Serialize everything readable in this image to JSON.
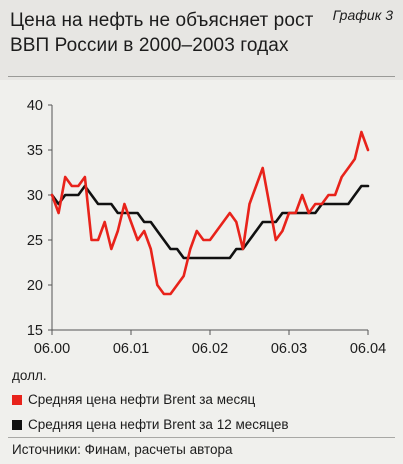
{
  "header": {
    "title_line1": "Цена на нефть не объясняет рост",
    "title_line2": "ВВП России в 2000–2003 годах",
    "badge": "График 3"
  },
  "colors": {
    "series_month": "#e8231b",
    "series_12m": "#111111",
    "background": "#e7e6e3"
  },
  "chart_data": {
    "type": "line",
    "title": "Цена на нефть не объясняет рост ВВП России в 2000–2003 годах",
    "xlabel": "",
    "ylabel": "долл.",
    "ylim": [
      15,
      40
    ],
    "yticks": [
      15,
      20,
      25,
      30,
      35,
      40
    ],
    "xlim": [
      "2000-06",
      "2004-06"
    ],
    "xticks": [
      "06.00",
      "06.01",
      "06.02",
      "06.03",
      "06.04"
    ],
    "grid": false,
    "legend_placement": "bottom",
    "series": [
      {
        "name": "Средняя цена нефти Brent за месяц",
        "color": "#e8231b",
        "points": [
          [
            "2000-06",
            30
          ],
          [
            "2000-07",
            28
          ],
          [
            "2000-08",
            32
          ],
          [
            "2000-09",
            31
          ],
          [
            "2000-10",
            31
          ],
          [
            "2000-11",
            32
          ],
          [
            "2000-12",
            25
          ],
          [
            "2001-01",
            25
          ],
          [
            "2001-02",
            27
          ],
          [
            "2001-03",
            24
          ],
          [
            "2001-04",
            26
          ],
          [
            "2001-05",
            29
          ],
          [
            "2001-06",
            27
          ],
          [
            "2001-07",
            25
          ],
          [
            "2001-08",
            26
          ],
          [
            "2001-09",
            24
          ],
          [
            "2001-10",
            20
          ],
          [
            "2001-11",
            19
          ],
          [
            "2001-12",
            19
          ],
          [
            "2002-01",
            20
          ],
          [
            "2002-02",
            21
          ],
          [
            "2002-03",
            24
          ],
          [
            "2002-04",
            26
          ],
          [
            "2002-05",
            25
          ],
          [
            "2002-06",
            25
          ],
          [
            "2002-07",
            26
          ],
          [
            "2002-08",
            27
          ],
          [
            "2002-09",
            28
          ],
          [
            "2002-10",
            27
          ],
          [
            "2002-11",
            24
          ],
          [
            "2002-12",
            29
          ],
          [
            "2003-01",
            31
          ],
          [
            "2003-02",
            33
          ],
          [
            "2003-03",
            29
          ],
          [
            "2003-04",
            25
          ],
          [
            "2003-05",
            26
          ],
          [
            "2003-06",
            28
          ],
          [
            "2003-07",
            28
          ],
          [
            "2003-08",
            30
          ],
          [
            "2003-09",
            28
          ],
          [
            "2003-10",
            29
          ],
          [
            "2003-11",
            29
          ],
          [
            "2003-12",
            30
          ],
          [
            "2004-01",
            30
          ],
          [
            "2004-02",
            32
          ],
          [
            "2004-03",
            33
          ],
          [
            "2004-04",
            34
          ],
          [
            "2004-05",
            37
          ],
          [
            "2004-06",
            35
          ]
        ]
      },
      {
        "name": "Средняя цена нефти Brent за 12 месяцев",
        "color": "#111111",
        "points": [
          [
            "2000-06",
            30
          ],
          [
            "2000-07",
            29
          ],
          [
            "2000-08",
            30
          ],
          [
            "2000-09",
            30
          ],
          [
            "2000-10",
            30
          ],
          [
            "2000-11",
            31
          ],
          [
            "2000-12",
            30
          ],
          [
            "2001-01",
            29
          ],
          [
            "2001-02",
            29
          ],
          [
            "2001-03",
            29
          ],
          [
            "2001-04",
            28
          ],
          [
            "2001-05",
            28
          ],
          [
            "2001-06",
            28
          ],
          [
            "2001-07",
            28
          ],
          [
            "2001-08",
            27
          ],
          [
            "2001-09",
            27
          ],
          [
            "2001-10",
            26
          ],
          [
            "2001-11",
            25
          ],
          [
            "2001-12",
            24
          ],
          [
            "2002-01",
            24
          ],
          [
            "2002-02",
            23
          ],
          [
            "2002-03",
            23
          ],
          [
            "2002-04",
            23
          ],
          [
            "2002-05",
            23
          ],
          [
            "2002-06",
            23
          ],
          [
            "2002-07",
            23
          ],
          [
            "2002-08",
            23
          ],
          [
            "2002-09",
            23
          ],
          [
            "2002-10",
            24
          ],
          [
            "2002-11",
            24
          ],
          [
            "2002-12",
            25
          ],
          [
            "2003-01",
            26
          ],
          [
            "2003-02",
            27
          ],
          [
            "2003-03",
            27
          ],
          [
            "2003-04",
            27
          ],
          [
            "2003-05",
            28
          ],
          [
            "2003-06",
            28
          ],
          [
            "2003-07",
            28
          ],
          [
            "2003-08",
            28
          ],
          [
            "2003-09",
            28
          ],
          [
            "2003-10",
            28
          ],
          [
            "2003-11",
            29
          ],
          [
            "2003-12",
            29
          ],
          [
            "2004-01",
            29
          ],
          [
            "2004-02",
            29
          ],
          [
            "2004-03",
            29
          ],
          [
            "2004-04",
            30
          ],
          [
            "2004-05",
            31
          ],
          [
            "2004-06",
            31
          ]
        ]
      }
    ]
  },
  "legend": {
    "unit": "долл.",
    "month": "Средняя цена нефти Brent за месяц",
    "year": "Средняя цена нефти Brent за 12 месяцев"
  },
  "source": "Источники: Финам, расчеты автора"
}
